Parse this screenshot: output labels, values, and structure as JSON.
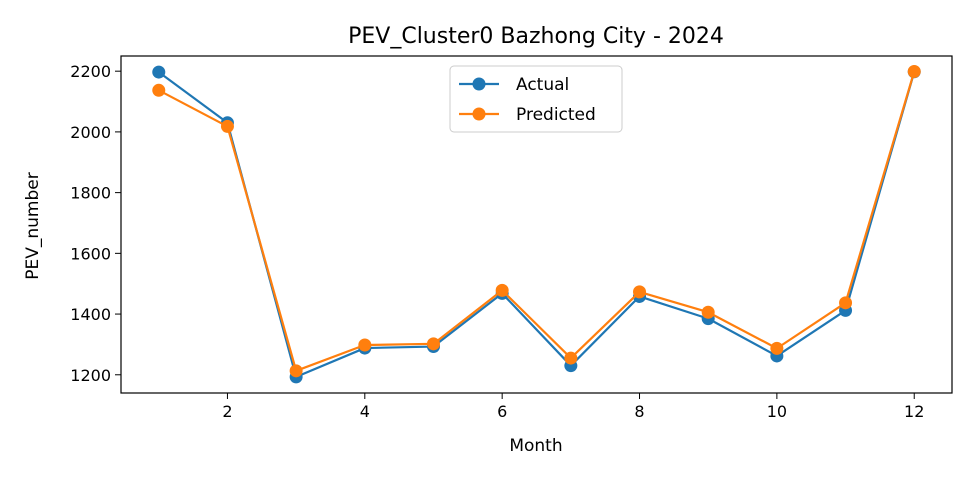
{
  "chart_data": {
    "type": "line",
    "title": "PEV_Cluster0 Bazhong City - 2024",
    "xlabel": "Month",
    "ylabel": "PEV_number",
    "x": [
      1,
      2,
      3,
      4,
      5,
      6,
      7,
      8,
      9,
      10,
      11,
      12
    ],
    "xlim": [
      0.45,
      12.55
    ],
    "ylim": [
      1140,
      2250
    ],
    "xticks": [
      2,
      4,
      6,
      8,
      10,
      12
    ],
    "yticks": [
      1200,
      1400,
      1600,
      1800,
      2000,
      2200
    ],
    "grid": false,
    "legend_position": "top-center",
    "series": [
      {
        "name": "Actual",
        "color": "#1f77b4",
        "marker": "circle",
        "values": [
          2197,
          2030,
          1193,
          1288,
          1293,
          1468,
          1230,
          1458,
          1385,
          1262,
          1412,
          2198
        ]
      },
      {
        "name": "Predicted",
        "color": "#ff7f0e",
        "marker": "circle",
        "values": [
          2137,
          2018,
          1213,
          1298,
          1302,
          1478,
          1255,
          1473,
          1406,
          1287,
          1437,
          2199
        ]
      }
    ]
  }
}
